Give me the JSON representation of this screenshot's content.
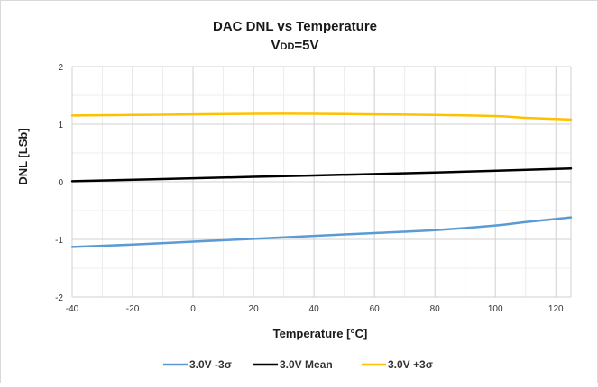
{
  "chart_data": {
    "type": "line",
    "title": "DAC DNL vs Temperature",
    "subtitle": "VDD=5V",
    "subtitle_parts": {
      "main": "V",
      "sub": "DD",
      "rest": "=5V"
    },
    "xlabel": "Temperature [°C]",
    "ylabel": "DNL [LSb]",
    "xlim": [
      -40,
      125
    ],
    "ylim": [
      -2,
      2
    ],
    "x_ticks": [
      -40,
      -20,
      0,
      20,
      40,
      60,
      80,
      100,
      120
    ],
    "y_ticks": [
      -2,
      -1,
      0,
      1,
      2
    ],
    "grid": true,
    "legend_position": "bottom",
    "series": [
      {
        "name": "3.0V -3σ",
        "color": "#5b9bd5",
        "x": [
          -40,
          -20,
          0,
          20,
          40,
          60,
          80,
          100,
          110,
          125
        ],
        "y": [
          -1.13,
          -1.09,
          -1.04,
          -0.99,
          -0.94,
          -0.89,
          -0.84,
          -0.76,
          -0.7,
          -0.62
        ]
      },
      {
        "name": "3.0V Mean",
        "color": "#000000",
        "x": [
          -40,
          0,
          40,
          80,
          125
        ],
        "y": [
          0.01,
          0.06,
          0.11,
          0.16,
          0.23
        ]
      },
      {
        "name": "3.0V +3σ",
        "color": "#ffc000",
        "x": [
          -40,
          -20,
          0,
          20,
          40,
          60,
          80,
          100,
          110,
          125
        ],
        "y": [
          1.15,
          1.16,
          1.17,
          1.18,
          1.18,
          1.17,
          1.16,
          1.14,
          1.11,
          1.08
        ]
      }
    ]
  }
}
